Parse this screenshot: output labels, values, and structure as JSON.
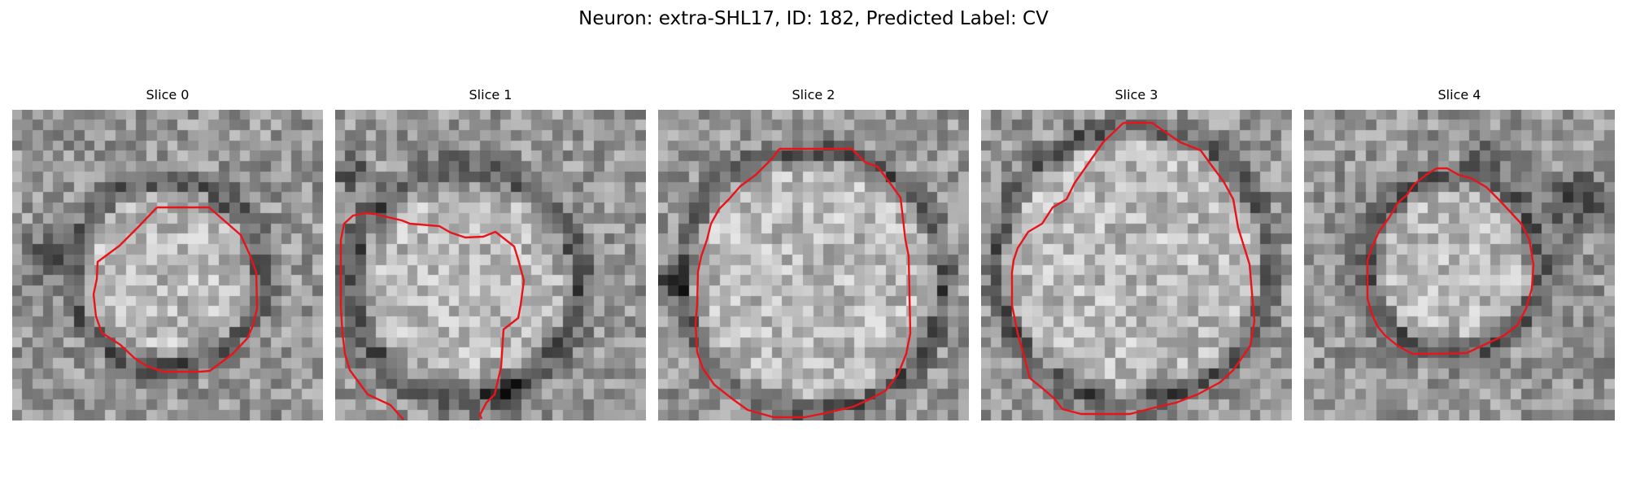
{
  "figure": {
    "title": "Neuron: extra-SHL17, ID: 182, Predicted Label: CV"
  },
  "colors": {
    "contour": "#e8141a",
    "background": "#ffffff"
  },
  "panels": [
    {
      "title": "Slice 0"
    },
    {
      "title": "Slice 1"
    },
    {
      "title": "Slice 2"
    },
    {
      "title": "Slice 3"
    },
    {
      "title": "Slice 4"
    }
  ]
}
